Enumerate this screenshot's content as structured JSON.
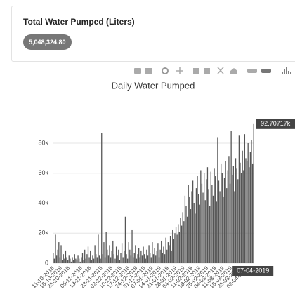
{
  "card": {
    "title": "Total Water Pumped (Liters)",
    "total": "5,048,324.80"
  },
  "chart_data": {
    "type": "bar",
    "title": "Daily Water Pumped",
    "color": "#555555",
    "grid": true,
    "x": [
      "11-10-2018",
      "12-10-2018",
      "13-10-2018",
      "14-10-2018",
      "15-10-2018",
      "16-10-2018",
      "17-10-2018",
      "18-10-2018",
      "19-10-2018",
      "20-10-2018",
      "21-10-2018",
      "22-10-2018",
      "23-10-2018",
      "24-10-2018",
      "25-10-2018",
      "26-10-2018",
      "27-10-2018",
      "28-10-2018",
      "29-10-2018",
      "30-10-2018",
      "31-10-2018",
      "01-11-2018",
      "02-11-2018",
      "03-11-2018",
      "04-11-2018",
      "05-11-2018",
      "06-11-2018",
      "07-11-2018",
      "08-11-2018",
      "09-11-2018",
      "10-11-2018",
      "11-11-2018",
      "12-11-2018",
      "13-11-2018",
      "14-11-2018",
      "15-11-2018",
      "16-11-2018",
      "17-11-2018",
      "18-11-2018",
      "19-11-2018",
      "20-11-2018",
      "21-11-2018",
      "22-11-2018",
      "23-11-2018",
      "24-11-2018",
      "25-11-2018",
      "26-11-2018",
      "27-11-2018",
      "28-11-2018",
      "29-11-2018",
      "30-11-2018",
      "01-12-2018",
      "02-12-2018",
      "03-12-2018",
      "04-12-2018",
      "05-12-2018",
      "06-12-2018",
      "07-12-2018",
      "08-12-2018",
      "09-12-2018",
      "10-12-2018",
      "11-12-2018",
      "12-12-2018",
      "13-12-2018",
      "14-12-2018",
      "15-12-2018",
      "16-12-2018",
      "17-12-2018",
      "18-12-2018",
      "19-12-2018",
      "20-12-2018",
      "21-12-2018",
      "22-12-2018",
      "23-12-2018",
      "24-12-2018",
      "25-12-2018",
      "26-12-2018",
      "27-12-2018",
      "28-12-2018",
      "29-12-2018",
      "30-12-2018",
      "31-12-2018",
      "01-01-2019",
      "02-01-2019",
      "03-01-2019",
      "04-01-2019",
      "05-01-2019",
      "06-01-2019",
      "07-01-2019",
      "08-01-2019",
      "09-01-2019",
      "10-01-2019",
      "11-01-2019",
      "12-01-2019",
      "13-01-2019",
      "14-01-2019",
      "15-01-2019",
      "16-01-2019",
      "17-01-2019",
      "18-01-2019",
      "19-01-2019",
      "20-01-2019",
      "21-01-2019",
      "22-01-2019",
      "23-01-2019",
      "24-01-2019",
      "25-01-2019",
      "26-01-2019",
      "27-01-2019",
      "28-01-2019",
      "29-01-2019",
      "30-01-2019",
      "31-01-2019",
      "01-02-2019",
      "02-02-2019",
      "03-02-2019",
      "04-02-2019",
      "05-02-2019",
      "06-02-2019",
      "07-02-2019",
      "08-02-2019",
      "09-02-2019",
      "10-02-2019",
      "11-02-2019",
      "12-02-2019",
      "13-02-2019",
      "14-02-2019",
      "15-02-2019",
      "16-02-2019",
      "17-02-2019",
      "18-02-2019",
      "19-02-2019",
      "20-02-2019",
      "21-02-2019",
      "22-02-2019",
      "23-02-2019",
      "24-02-2019",
      "25-02-2019",
      "26-02-2019",
      "27-02-2019",
      "28-02-2019",
      "01-03-2019",
      "02-03-2019",
      "03-03-2019",
      "04-03-2019",
      "05-03-2019",
      "06-03-2019",
      "07-03-2019",
      "08-03-2019",
      "09-03-2019",
      "10-03-2019",
      "11-03-2019",
      "12-03-2019",
      "13-03-2019",
      "14-03-2019",
      "15-03-2019",
      "16-03-2019",
      "17-03-2019",
      "18-03-2019",
      "19-03-2019",
      "20-03-2019",
      "21-03-2019",
      "22-03-2019",
      "23-03-2019",
      "24-03-2019",
      "25-03-2019",
      "26-03-2019",
      "27-03-2019",
      "28-03-2019",
      "29-03-2019",
      "30-03-2019",
      "31-03-2019",
      "01-04-2019",
      "02-04-2019",
      "03-04-2019",
      "04-04-2019",
      "05-04-2019",
      "06-04-2019",
      "07-04-2019"
    ],
    "values": [
      7000,
      3000,
      19000,
      5000,
      9000,
      14000,
      4000,
      12000,
      2000,
      6000,
      3000,
      8000,
      4000,
      2000,
      5000,
      3000,
      1000,
      4000,
      2000,
      6000,
      3000,
      2000,
      5000,
      3000,
      1000,
      4000,
      7000,
      2000,
      9000,
      3000,
      6000,
      11000,
      4000,
      8000,
      2000,
      5000,
      3000,
      12000,
      6000,
      4000,
      19000,
      5000,
      3000,
      87000,
      6000,
      14000,
      4000,
      21000,
      9000,
      5000,
      12000,
      4000,
      8000,
      15000,
      6000,
      3000,
      11000,
      5000,
      9000,
      2000,
      7000,
      13000,
      4000,
      8000,
      31000,
      6000,
      3000,
      14000,
      9000,
      5000,
      22000,
      4000,
      7000,
      12000,
      3000,
      6000,
      10000,
      4000,
      8000,
      5000,
      11000,
      6000,
      3000,
      9000,
      5000,
      12000,
      7000,
      4000,
      14000,
      6000,
      10000,
      5000,
      8000,
      13000,
      4000,
      9000,
      15000,
      7000,
      11000,
      6000,
      17000,
      9000,
      14000,
      12000,
      18000,
      8000,
      22000,
      16000,
      20000,
      24000,
      19000,
      26000,
      21000,
      30000,
      25000,
      34000,
      28000,
      45000,
      38000,
      31000,
      52000,
      44000,
      36000,
      48000,
      55000,
      40000,
      33000,
      50000,
      58000,
      46000,
      39000,
      62000,
      53000,
      47000,
      60000,
      42000,
      56000,
      64000,
      49000,
      38000,
      61000,
      52000,
      45000,
      63000,
      58000,
      41000,
      84000,
      55000,
      48000,
      66000,
      60000,
      44000,
      57000,
      68000,
      50000,
      62000,
      71000,
      53000,
      88000,
      59000,
      65000,
      48000,
      70000,
      63000,
      56000,
      85000,
      67000,
      60000,
      75000,
      62000,
      86000,
      70000,
      68000,
      80000,
      64000,
      74000,
      82000,
      66000,
      92707.17
    ],
    "ylim": [
      0,
      96000
    ],
    "yticks": [
      {
        "value": 0,
        "label": "0"
      },
      {
        "value": 20000,
        "label": "20k"
      },
      {
        "value": 40000,
        "label": "40k"
      },
      {
        "value": 60000,
        "label": "60k"
      },
      {
        "value": 80000,
        "label": "80k"
      }
    ],
    "xticks": [
      "11-10-2018",
      "18-10-2018",
      "25-10-2018",
      "05-11-2018",
      "13-11-2018",
      "23-11-2018",
      "02-12-2018",
      "10-12-2018",
      "17-12-2018",
      "24-12-2018",
      "31-12-2018",
      "07-01-2019",
      "14-01-2019",
      "21-01-2019",
      "28-01-2019",
      "04-02-2019",
      "11-02-2019",
      "18-02-2019",
      "25-02-2019",
      "04-03-2019",
      "11-03-2019",
      "18-03-2019",
      "25-03-2019",
      "02-04-2019"
    ],
    "hover": {
      "y_label": "92.70717k",
      "x_label": "07-04-2019"
    }
  }
}
